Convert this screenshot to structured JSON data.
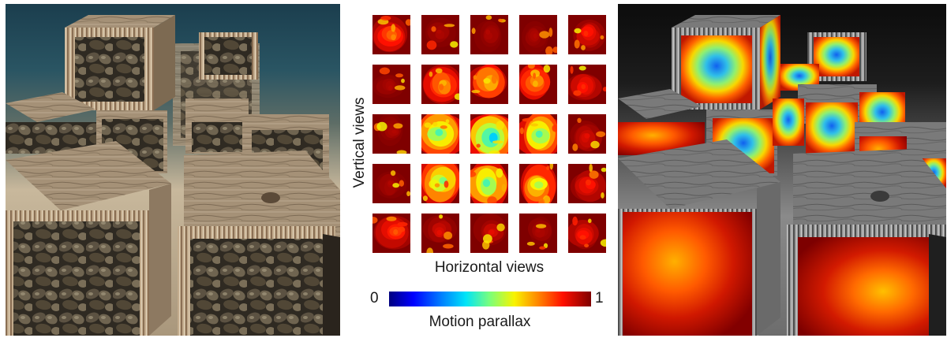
{
  "figure": {
    "vertical_axis_label": "Vertical views",
    "horizontal_axis_label": "Horizontal views",
    "colorbar": {
      "title": "Motion parallax",
      "min_label": "0",
      "max_label": "1",
      "colormap": "jet",
      "colors": [
        "#00007f",
        "#0000ff",
        "#0080ff",
        "#00e4f8",
        "#7cff79",
        "#f8f400",
        "#ff8400",
        "#ff1000",
        "#7f0000"
      ]
    },
    "grid": {
      "rows": 5,
      "columns": 5,
      "motion_parallax_levels": [
        [
          0.75,
          0.95,
          0.95,
          0.95,
          0.85
        ],
        [
          0.95,
          0.7,
          0.65,
          0.7,
          0.85
        ],
        [
          0.95,
          0.45,
          0.35,
          0.45,
          0.9
        ],
        [
          0.95,
          0.5,
          0.45,
          0.55,
          0.85
        ],
        [
          0.8,
          0.9,
          0.9,
          0.95,
          0.85
        ]
      ]
    },
    "panels": [
      {
        "name": "rendered scene",
        "palette": "wood-crates-with-rocks"
      },
      {
        "name": "motion parallax overlay",
        "palette": "grayscale-with-heatmap"
      }
    ]
  }
}
